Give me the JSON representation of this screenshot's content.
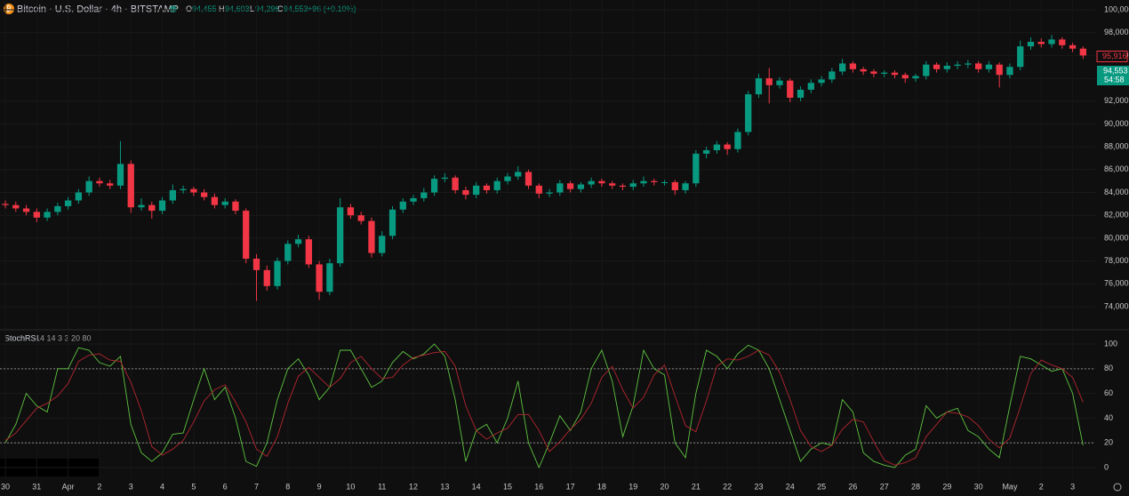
{
  "header": {
    "symbol": "Bitcoin · U.S. Dollar · 4h · BITSTAMP",
    "o_label": "O",
    "o": "94,455",
    "h_label": "H",
    "h": "94,603",
    "l_label": "L",
    "l": "94,296",
    "c_label": "C",
    "c": "94,553",
    "change": "+96 (+0.10%)"
  },
  "price_labels": {
    "last": {
      "value": 95916,
      "label": "95,916"
    },
    "current": {
      "value": 94553,
      "label": "94,553"
    },
    "countdown": "54:58"
  },
  "chart_data": [
    {
      "type": "candlestick",
      "up_color": "#089981",
      "down_color": "#f23645",
      "grid": true,
      "xlim": [
        -0.51,
        104.16
      ],
      "ylim": [
        72050,
        100860
      ],
      "yticks": [
        {
          "value": 74000,
          "label": "74,000"
        },
        {
          "value": 76000,
          "label": "76,000"
        },
        {
          "value": 78000,
          "label": "78,000"
        },
        {
          "value": 80000,
          "label": "80,000"
        },
        {
          "value": 82000,
          "label": "82,000"
        },
        {
          "value": 84000,
          "label": "84,000"
        },
        {
          "value": 86000,
          "label": "86,000"
        },
        {
          "value": 88000,
          "label": "88,000"
        },
        {
          "value": 90000,
          "label": "90,000"
        },
        {
          "value": 92000,
          "label": "92,000"
        },
        {
          "value": 94000,
          "label": "94,000"
        },
        {
          "value": 96000,
          "label": "96,000"
        },
        {
          "value": 98000,
          "label": "98,000"
        },
        {
          "value": 100000,
          "label": "100,000"
        }
      ],
      "open": [
        83000,
        82900,
        82600,
        82300,
        81800,
        82300,
        82800,
        83300,
        84000,
        85000,
        84800,
        84600,
        86500,
        82700,
        82900,
        82400,
        83300,
        84200,
        84300,
        84000,
        83600,
        82900,
        83200,
        82400,
        78200,
        77200,
        75800,
        78000,
        79500,
        79900,
        77700,
        75300,
        77800,
        82700,
        82000,
        81500,
        78700,
        80200,
        82500,
        83200,
        83500,
        84000,
        85200,
        85300,
        84200,
        83800,
        84600,
        84200,
        85000,
        85400,
        85800,
        84600,
        83900,
        84000,
        84800,
        84300,
        84700,
        85000,
        84800,
        84600,
        84500,
        84800,
        85000,
        84900,
        84900,
        84200,
        84800,
        87400,
        87700,
        88200,
        87800,
        89300,
        92600,
        94000,
        93400,
        93800,
        92300,
        93000,
        93600,
        93900,
        94600,
        95300,
        94800,
        94600,
        94400,
        94500,
        94300,
        94000,
        94200,
        95200,
        94800,
        95100,
        95200,
        95300,
        94800,
        95200,
        94300,
        95000,
        96800,
        97200,
        97000,
        97400,
        96900,
        96600
      ],
      "high": [
        83300,
        83200,
        82900,
        82600,
        82600,
        83100,
        83600,
        84300,
        85400,
        85300,
        85100,
        88500,
        86800,
        83500,
        83200,
        83600,
        84700,
        84600,
        84500,
        84300,
        83900,
        83500,
        83400,
        82600,
        78600,
        77600,
        78300,
        79800,
        80300,
        80200,
        78000,
        78200,
        83500,
        83000,
        82300,
        81800,
        80600,
        82800,
        83500,
        83800,
        84400,
        85500,
        85700,
        85500,
        84500,
        84900,
        84800,
        85300,
        85700,
        86300,
        86000,
        84800,
        84300,
        85100,
        85000,
        84900,
        85300,
        85200,
        85000,
        84800,
        85100,
        85400,
        85200,
        85100,
        85100,
        85000,
        87700,
        88000,
        88500,
        88400,
        89600,
        92900,
        94400,
        94900,
        94100,
        94000,
        93300,
        93900,
        94200,
        94900,
        95700,
        95500,
        95000,
        94800,
        94700,
        94700,
        94500,
        94400,
        95500,
        95400,
        95400,
        95500,
        95600,
        95500,
        95500,
        95400,
        95300,
        97300,
        97600,
        97500,
        97800,
        97600,
        97100,
        96800
      ],
      "low": [
        82600,
        82300,
        82000,
        81400,
        81500,
        82000,
        82500,
        83000,
        83700,
        84500,
        84300,
        84300,
        82200,
        82400,
        81700,
        82100,
        83000,
        83900,
        83700,
        83300,
        82600,
        82600,
        82100,
        77800,
        74500,
        75400,
        75500,
        77700,
        79200,
        77400,
        74600,
        75000,
        77500,
        81700,
        81200,
        78300,
        78400,
        79900,
        82200,
        82900,
        83200,
        83700,
        84900,
        83900,
        83400,
        83500,
        83900,
        83900,
        84700,
        85100,
        84300,
        83500,
        83600,
        83700,
        84000,
        84000,
        84400,
        84500,
        84300,
        84200,
        84200,
        84500,
        84600,
        84600,
        83800,
        83900,
        84500,
        87000,
        87400,
        87300,
        87500,
        89000,
        92300,
        91800,
        93100,
        91900,
        92000,
        92700,
        93300,
        93600,
        94300,
        94500,
        94300,
        94100,
        94100,
        94000,
        93600,
        93700,
        93900,
        94500,
        94500,
        94800,
        94900,
        94500,
        94500,
        93200,
        94000,
        94700,
        96500,
        96700,
        96700,
        96600,
        96300,
        95700
      ],
      "close": [
        82900,
        82600,
        82300,
        81800,
        82300,
        82800,
        83300,
        84000,
        85000,
        84800,
        84600,
        86500,
        82700,
        82900,
        82400,
        83300,
        84200,
        84300,
        84000,
        83600,
        82900,
        83200,
        82400,
        78200,
        77200,
        75800,
        78000,
        79500,
        79900,
        77700,
        75300,
        77800,
        82700,
        82000,
        81500,
        78700,
        80200,
        82500,
        83200,
        83500,
        84000,
        85200,
        85300,
        84200,
        83800,
        84600,
        84200,
        85000,
        85400,
        85800,
        84600,
        83900,
        84000,
        84800,
        84300,
        84700,
        85000,
        84800,
        84600,
        84500,
        84800,
        85000,
        84900,
        84900,
        84200,
        84800,
        87400,
        87700,
        88200,
        87800,
        89300,
        92600,
        94000,
        93400,
        93800,
        92300,
        93000,
        93600,
        93900,
        94600,
        95300,
        94800,
        94600,
        94400,
        94500,
        94300,
        94000,
        94200,
        95200,
        94800,
        95100,
        95200,
        95300,
        94800,
        95200,
        94300,
        95000,
        96800,
        97200,
        97000,
        97400,
        96900,
        96600,
        96000
      ]
    },
    {
      "type": "line",
      "title": "StochRSI",
      "subtitle": "14 14 3 3 20 80",
      "grid": true,
      "xlim": [
        -0.51,
        104.16
      ],
      "ylim": [
        -8.6,
        110.8
      ],
      "yticks": [
        0,
        20,
        40,
        60,
        80,
        100
      ],
      "hlines": [
        20,
        80
      ],
      "xticks": [
        {
          "value": 0,
          "label": "30"
        },
        {
          "value": 3,
          "label": "31"
        },
        {
          "value": 6,
          "label": "Apr"
        },
        {
          "value": 9,
          "label": "2"
        },
        {
          "value": 12,
          "label": "3"
        },
        {
          "value": 15,
          "label": "4"
        },
        {
          "value": 18,
          "label": "5"
        },
        {
          "value": 21,
          "label": "6"
        },
        {
          "value": 24,
          "label": "7"
        },
        {
          "value": 27,
          "label": "8"
        },
        {
          "value": 30,
          "label": "9"
        },
        {
          "value": 33,
          "label": "10"
        },
        {
          "value": 36,
          "label": "11"
        },
        {
          "value": 39,
          "label": "12"
        },
        {
          "value": 42,
          "label": "13"
        },
        {
          "value": 45,
          "label": "14"
        },
        {
          "value": 48,
          "label": "15"
        },
        {
          "value": 51,
          "label": "16"
        },
        {
          "value": 54,
          "label": "17"
        },
        {
          "value": 57,
          "label": "18"
        },
        {
          "value": 60,
          "label": "19"
        },
        {
          "value": 63,
          "label": "20"
        },
        {
          "value": 66,
          "label": "21"
        },
        {
          "value": 69,
          "label": "22"
        },
        {
          "value": 72,
          "label": "23"
        },
        {
          "value": 75,
          "label": "24"
        },
        {
          "value": 78,
          "label": "25"
        },
        {
          "value": 81,
          "label": "26"
        },
        {
          "value": 84,
          "label": "27"
        },
        {
          "value": 87,
          "label": "28"
        },
        {
          "value": 90,
          "label": "29"
        },
        {
          "value": 93,
          "label": "30"
        },
        {
          "value": 96,
          "label": "May"
        },
        {
          "value": 99,
          "label": "2"
        },
        {
          "value": 102,
          "label": "3"
        }
      ],
      "series": [
        {
          "color": "#5ec440",
          "values": [
            20,
            35,
            60,
            50,
            45,
            80,
            80,
            97,
            95,
            85,
            82,
            90,
            35,
            12,
            5,
            12,
            27,
            28,
            55,
            80,
            55,
            65,
            40,
            5,
            1,
            20,
            55,
            80,
            88,
            75,
            55,
            65,
            95,
            95,
            80,
            65,
            70,
            85,
            94,
            88,
            92,
            100,
            90,
            55,
            5,
            30,
            35,
            20,
            40,
            70,
            20,
            0,
            20,
            42,
            30,
            45,
            80,
            95,
            70,
            25,
            50,
            95,
            80,
            75,
            20,
            8,
            60,
            95,
            90,
            80,
            92,
            99,
            95,
            80,
            55,
            30,
            5,
            15,
            20,
            18,
            55,
            45,
            12,
            5,
            2,
            0,
            10,
            15,
            50,
            40,
            45,
            48,
            30,
            25,
            15,
            8,
            50,
            90,
            88,
            83,
            78,
            80,
            60,
            18
          ]
        },
        {
          "color": "#b3262f",
          "values": [
            22,
            28,
            38,
            48,
            52,
            58,
            68,
            86,
            91,
            92,
            87,
            86,
            69,
            46,
            17,
            10,
            15,
            22,
            37,
            54,
            63,
            67,
            53,
            37,
            15,
            9,
            25,
            52,
            74,
            81,
            73,
            65,
            72,
            85,
            90,
            80,
            72,
            73,
            83,
            89,
            91,
            93,
            94,
            82,
            50,
            30,
            23,
            28,
            32,
            43,
            43,
            30,
            13,
            21,
            31,
            39,
            52,
            73,
            82,
            63,
            48,
            57,
            75,
            83,
            58,
            34,
            29,
            54,
            82,
            88,
            87,
            90,
            95,
            91,
            77,
            55,
            30,
            17,
            13,
            18,
            31,
            39,
            37,
            21,
            6,
            2,
            4,
            8,
            25,
            35,
            45,
            44,
            41,
            34,
            23,
            16,
            24,
            49,
            76,
            87,
            83,
            80,
            73,
            53
          ]
        }
      ]
    }
  ]
}
